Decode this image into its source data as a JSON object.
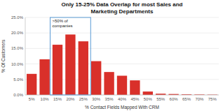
{
  "chart_data": {
    "type": "bar",
    "title": "Only 15-25% Data Overlap for most Sales and\nMarketing Departments",
    "x_label": "% Contact Fields Mapped With CRM",
    "y_label": "% Of Customers",
    "categories": [
      "5%",
      "10%",
      "15%",
      "20%",
      "25%",
      "30%",
      "35%",
      "40%",
      "45%",
      "50%",
      "55%",
      "60%",
      "65%",
      "70%",
      "75%"
    ],
    "values": [
      6.8,
      11.5,
      16.2,
      19.5,
      17.3,
      10.9,
      7.4,
      6.2,
      4.7,
      1.1,
      0.4,
      0.3,
      0.2,
      0.15,
      0.1
    ],
    "color": "#d9302a",
    "ylim": [
      0,
      25
    ],
    "yticks": [
      {
        "value": 0.0,
        "label": "0.0%"
      },
      {
        "value": 5.0,
        "label": "5.0%"
      },
      {
        "value": 10.0,
        "label": "10.0%"
      },
      {
        "value": 15.0,
        "label": "15.0%"
      },
      {
        "value": 20.0,
        "label": "20.0%"
      },
      {
        "value": 25.0,
        "label": "25.0%"
      }
    ],
    "grid": true,
    "annotations": [
      {
        "text": ">50% of\ncompanies",
        "start": "15%",
        "end": "25%",
        "color": "#5b9bd5"
      }
    ]
  }
}
